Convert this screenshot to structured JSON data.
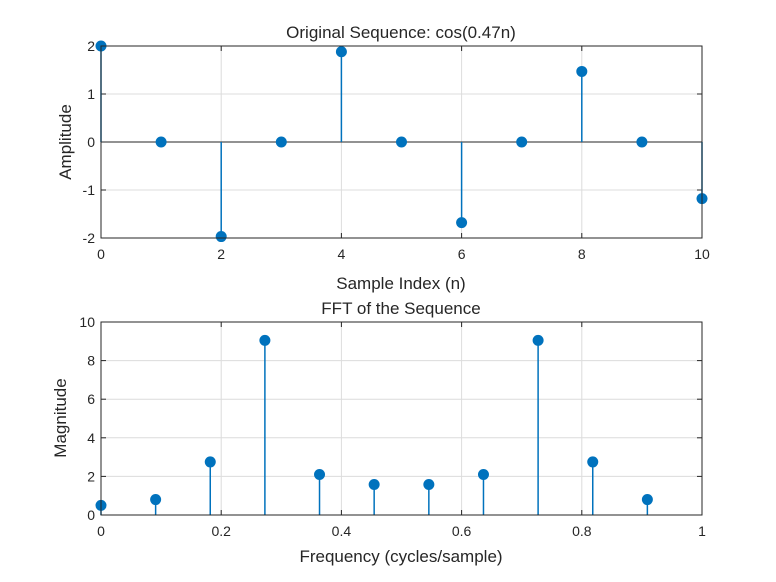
{
  "chart_data": [
    {
      "type": "stem",
      "title": "Original Sequence: cos(0.47n)",
      "xlabel": "Sample Index (n)",
      "ylabel": "Amplitude",
      "xlim": [
        0,
        10
      ],
      "ylim": [
        -2,
        2
      ],
      "xticks": [
        0,
        2,
        4,
        6,
        8,
        10
      ],
      "yticks": [
        -2,
        -1,
        0,
        1,
        2
      ],
      "grid": true,
      "x": [
        0,
        1,
        2,
        3,
        4,
        5,
        6,
        7,
        8,
        9,
        10
      ],
      "y": [
        2,
        0,
        -1.97,
        0,
        1.88,
        0,
        -1.68,
        0,
        1.47,
        0,
        -1.18
      ],
      "color": "#0072bd"
    },
    {
      "type": "stem",
      "title": "FFT of the Sequence",
      "xlabel": "Frequency (cycles/sample)",
      "ylabel": "Magnitude",
      "xlim": [
        0,
        1
      ],
      "ylim": [
        0,
        10
      ],
      "xticks": [
        0,
        0.2,
        0.4,
        0.6,
        0.8,
        1
      ],
      "yticks": [
        0,
        2,
        4,
        6,
        8,
        10
      ],
      "grid": true,
      "x": [
        0,
        0.0909,
        0.1818,
        0.2727,
        0.3636,
        0.4545,
        0.5455,
        0.6364,
        0.7273,
        0.8182,
        0.9091
      ],
      "y": [
        0.5,
        0.8,
        2.75,
        9.05,
        2.1,
        1.58,
        1.58,
        2.1,
        9.05,
        2.75,
        0.8
      ],
      "color": "#0072bd"
    }
  ]
}
